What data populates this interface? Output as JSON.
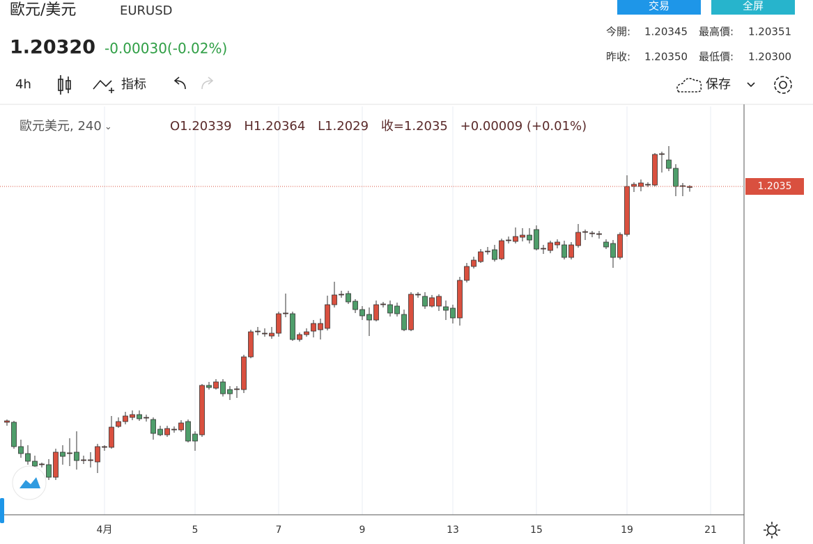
{
  "header": {
    "name": "歐元/美元",
    "symbol": "EURUSD",
    "price": "1.20320",
    "change": "-0.00030(-0.02%)",
    "buttons": [
      "交易",
      "全屏"
    ],
    "stats": [
      [
        {
          "label": "今開:",
          "value": "1.20345"
        },
        {
          "label": "最高價:",
          "value": "1.20351"
        }
      ],
      [
        {
          "label": "昨收:",
          "value": "1.20350"
        },
        {
          "label": "最低價:",
          "value": "1.20300"
        }
      ]
    ]
  },
  "toolbar": {
    "interval": "4h",
    "indicators": "指标",
    "save": "保存"
  },
  "legend": {
    "series": "歐元美元, 240",
    "labels": [
      "O",
      "H",
      "L",
      "收="
    ],
    "change": "+0.00009 (+0.01%)"
  },
  "chart_data": {
    "type": "candlestick",
    "up_color": "#d9503f",
    "down_color": "#4f9e6b",
    "grid": true,
    "xlim": [
      -1,
      105.8
    ],
    "ylim": [
      1.16574,
      1.2127
    ],
    "xticks": [
      {
        "value": 14,
        "label": "4月"
      },
      {
        "value": 27,
        "label": "5"
      },
      {
        "value": 39,
        "label": "7"
      },
      {
        "value": 51,
        "label": "9"
      },
      {
        "value": 64,
        "label": "13"
      },
      {
        "value": 76,
        "label": "15"
      },
      {
        "value": 89,
        "label": "19"
      },
      {
        "value": 101,
        "label": "21"
      }
    ],
    "open": [
      1.17638,
      1.17638,
      1.17358,
      1.17278,
      1.1719,
      1.1715,
      1.1715,
      1.17006,
      1.17294,
      1.17278,
      1.17294,
      1.17198,
      1.17198,
      1.17182,
      1.1735,
      1.1735,
      1.1759,
      1.17646,
      1.17694,
      1.17726,
      1.17686,
      1.1767,
      1.17558,
      1.17494,
      1.1755,
      1.1755,
      1.17646,
      1.17502,
      1.17494,
      1.18062,
      1.1803,
      1.18102,
      1.18014,
      1.18014,
      1.18014,
      1.1839,
      1.18678,
      1.18654,
      1.1863,
      1.18662,
      1.18886,
      1.18886,
      1.1859,
      1.18646,
      1.18686,
      1.18702,
      1.18718,
      1.1899,
      1.19102,
      1.19118,
      1.1903,
      1.18934,
      1.18878,
      1.18814,
      1.1899,
      1.1899,
      1.18974,
      1.18878,
      1.18702,
      1.19102,
      1.19086,
      1.18974,
      1.18974,
      1.18966,
      1.1895,
      1.18838,
      1.1927,
      1.1943,
      1.19486,
      1.19598,
      1.19622,
      1.19518,
      1.19726,
      1.19718,
      1.19766,
      1.1979,
      1.19854,
      1.1963,
      1.19614,
      1.19678,
      1.19678,
      1.19534,
      1.1967,
      1.19822,
      1.19806,
      1.19798,
      1.1971,
      1.19694,
      1.19534,
      1.19798,
      1.2035,
      1.2035,
      1.20366,
      1.20366,
      1.20718,
      1.20654,
      1.20558,
      1.2035,
      1.20339
    ],
    "high": [
      1.1767,
      1.17654,
      1.17438,
      1.17374,
      1.17254,
      1.17174,
      1.17214,
      1.17334,
      1.17374,
      1.17454,
      1.17534,
      1.17254,
      1.17294,
      1.1739,
      1.17374,
      1.1771,
      1.17694,
      1.17758,
      1.17774,
      1.17774,
      1.17726,
      1.17694,
      1.17598,
      1.17598,
      1.1759,
      1.17662,
      1.1767,
      1.17534,
      1.18078,
      1.18102,
      1.18134,
      1.18134,
      1.18054,
      1.18054,
      1.18414,
      1.18702,
      1.18734,
      1.18718,
      1.18734,
      1.1891,
      1.19118,
      1.1891,
      1.1867,
      1.18718,
      1.18814,
      1.1883,
      1.19094,
      1.19254,
      1.1915,
      1.1915,
      1.19054,
      1.18974,
      1.18958,
      1.19038,
      1.19022,
      1.19038,
      1.19014,
      1.18934,
      1.19134,
      1.19134,
      1.19134,
      1.19102,
      1.1911,
      1.19038,
      1.1899,
      1.1931,
      1.1947,
      1.19542,
      1.1963,
      1.19654,
      1.19678,
      1.1975,
      1.19774,
      1.19878,
      1.1987,
      1.1987,
      1.19902,
      1.19678,
      1.19726,
      1.19742,
      1.19726,
      1.1971,
      1.19918,
      1.19854,
      1.19838,
      1.19838,
      1.19742,
      1.19734,
      1.19822,
      1.20478,
      1.20398,
      1.2043,
      1.20398,
      1.20734,
      1.2075,
      1.20814,
      1.20606,
      1.2039,
      1.20364
    ],
    "low": [
      1.17598,
      1.17334,
      1.1723,
      1.1715,
      1.17094,
      1.17118,
      1.16974,
      1.16974,
      1.1715,
      1.17134,
      1.17094,
      1.17158,
      1.17118,
      1.17054,
      1.1731,
      1.17334,
      1.17574,
      1.17614,
      1.17662,
      1.17654,
      1.17646,
      1.17438,
      1.17478,
      1.1747,
      1.17518,
      1.17526,
      1.17406,
      1.1731,
      1.1747,
      1.18014,
      1.18014,
      1.17934,
      1.17894,
      1.17918,
      1.17974,
      1.18374,
      1.18638,
      1.18622,
      1.18598,
      1.18622,
      1.18846,
      1.18574,
      1.18566,
      1.18622,
      1.18614,
      1.1859,
      1.18694,
      1.18958,
      1.1907,
      1.18998,
      1.18894,
      1.18814,
      1.1863,
      1.18798,
      1.18958,
      1.18854,
      1.18854,
      1.18686,
      1.18686,
      1.1907,
      1.18942,
      1.18958,
      1.18918,
      1.18814,
      1.18774,
      1.1875,
      1.19246,
      1.19406,
      1.1947,
      1.19566,
      1.19486,
      1.19502,
      1.19694,
      1.19694,
      1.19718,
      1.19694,
      1.19614,
      1.19574,
      1.19582,
      1.19638,
      1.1951,
      1.1951,
      1.19646,
      1.19734,
      1.19766,
      1.1975,
      1.1963,
      1.19414,
      1.1951,
      1.19774,
      1.20286,
      1.20294,
      1.20342,
      1.2035,
      1.2051,
      1.20526,
      1.20238,
      1.20238,
      1.2029
    ],
    "close": [
      1.17654,
      1.17358,
      1.17278,
      1.1719,
      1.17134,
      1.17158,
      1.17006,
      1.17294,
      1.17246,
      1.17286,
      1.17198,
      1.17206,
      1.17206,
      1.17358,
      1.17358,
      1.17582,
      1.17646,
      1.1771,
      1.17726,
      1.17678,
      1.17694,
      1.1751,
      1.17494,
      1.17566,
      1.17558,
      1.1763,
      1.17422,
      1.17422,
      1.18062,
      1.18038,
      1.18102,
      1.17966,
      1.17966,
      1.18022,
      1.1839,
      1.18678,
      1.18686,
      1.18662,
      1.18662,
      1.18886,
      1.18894,
      1.1859,
      1.18646,
      1.18678,
      1.18774,
      1.18774,
      1.1899,
      1.19102,
      1.1911,
      1.19022,
      1.18934,
      1.18862,
      1.18814,
      1.1899,
      1.18998,
      1.18894,
      1.18886,
      1.18702,
      1.1911,
      1.1911,
      1.18974,
      1.1907,
      1.19086,
      1.18926,
      1.18838,
      1.1927,
      1.1943,
      1.19502,
      1.19598,
      1.19606,
      1.1951,
      1.19726,
      1.19734,
      1.19774,
      1.1979,
      1.19734,
      1.1963,
      1.19638,
      1.19702,
      1.1971,
      1.19534,
      1.19678,
      1.19822,
      1.1983,
      1.19814,
      1.19806,
      1.19654,
      1.19534,
      1.19798,
      1.2035,
      1.20374,
      1.2039,
      1.20374,
      1.20718,
      1.20726,
      1.20558,
      1.2035,
      1.20358,
      1.2035
    ]
  }
}
